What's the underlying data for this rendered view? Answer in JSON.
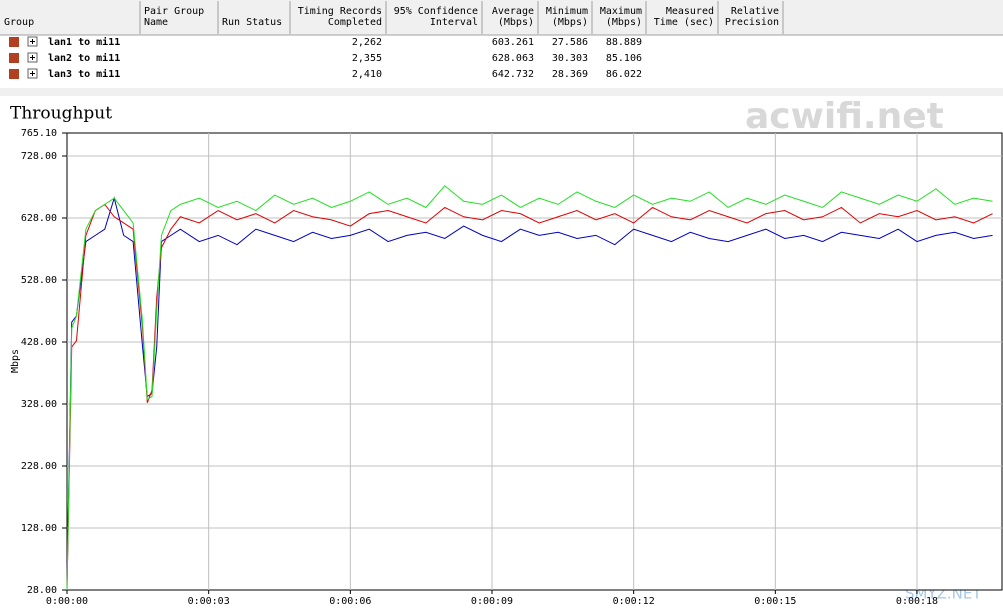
{
  "table": {
    "headers": [
      [
        "Group"
      ],
      [
        "Pair Group",
        "Name"
      ],
      [
        "Run Status"
      ],
      [
        "Timing Records",
        "Completed"
      ],
      [
        "95% Confidence",
        "Interval"
      ],
      [
        "Average",
        "(Mbps)"
      ],
      [
        "Minimum",
        "(Mbps)"
      ],
      [
        "Maximum",
        "(Mbps)"
      ],
      [
        "Measured",
        "Time (sec)"
      ],
      [
        "Relative",
        "Precision"
      ]
    ],
    "rows": [
      {
        "group": "lan1 to mi11",
        "records": "2,262",
        "average": "603.261",
        "minimum": "27.586",
        "maximum": "88.889"
      },
      {
        "group": "lan2 to mi11",
        "records": "2,355",
        "average": "628.063",
        "minimum": "30.303",
        "maximum": "85.106"
      },
      {
        "group": "lan3 to mi11",
        "records": "2,410",
        "average": "642.732",
        "minimum": "28.369",
        "maximum": "86.022"
      }
    ]
  },
  "watermarks": [
    "acwifi.net",
    "SMYZ.NET"
  ],
  "chart_data": {
    "type": "line",
    "title": "Throughput",
    "y_label": "Mbps",
    "grid": true,
    "x": [
      0,
      0.1,
      0.2,
      0.4,
      0.6,
      0.8,
      1.0,
      1.2,
      1.4,
      1.6,
      1.7,
      1.8,
      1.9,
      2.0,
      2.2,
      2.4,
      2.8,
      3.2,
      3.6,
      4.0,
      4.4,
      4.8,
      5.2,
      5.6,
      6.0,
      6.4,
      6.8,
      7.2,
      7.6,
      8.0,
      8.4,
      8.8,
      9.2,
      9.6,
      10.0,
      10.4,
      10.8,
      11.2,
      11.6,
      12.0,
      12.4,
      12.8,
      13.2,
      13.6,
      14.0,
      14.4,
      14.8,
      15.2,
      15.6,
      16.0,
      16.4,
      16.8,
      17.2,
      17.6,
      18.0,
      18.4,
      18.8,
      19.2,
      19.6
    ],
    "xlim": [
      0,
      19.8
    ],
    "xticks": [
      {
        "value": 0,
        "label": "0:00:00"
      },
      {
        "value": 3,
        "label": "0:00:03"
      },
      {
        "value": 6,
        "label": "0:00:06"
      },
      {
        "value": 9,
        "label": "0:00:09"
      },
      {
        "value": 12,
        "label": "0:00:12"
      },
      {
        "value": 15,
        "label": "0:00:15"
      },
      {
        "value": 18,
        "label": "0:00:18"
      }
    ],
    "ylim": [
      28,
      765.1
    ],
    "yticks": [
      {
        "value": 28,
        "label": "28.00"
      },
      {
        "value": 128,
        "label": "128.00"
      },
      {
        "value": 228,
        "label": "228.00"
      },
      {
        "value": 328,
        "label": "328.00"
      },
      {
        "value": 428,
        "label": "428.00"
      },
      {
        "value": 528,
        "label": "528.00"
      },
      {
        "value": 628,
        "label": "628.00"
      },
      {
        "value": 728,
        "label": "728.00"
      },
      {
        "value": 765.1,
        "label": "765.10"
      }
    ],
    "series": [
      {
        "name": "lan1 to mi11",
        "color": "#0000c0",
        "values": [
          40,
          460,
          470,
          590,
          600,
          610,
          660,
          600,
          590,
          420,
          340,
          345,
          420,
          590,
          600,
          610,
          590,
          600,
          585,
          610,
          600,
          590,
          605,
          595,
          600,
          610,
          590,
          600,
          605,
          595,
          615,
          600,
          590,
          610,
          600,
          605,
          595,
          600,
          585,
          610,
          600,
          590,
          605,
          595,
          590,
          600,
          610,
          595,
          600,
          590,
          605,
          600,
          595,
          610,
          590,
          600,
          605,
          595,
          600
        ]
      },
      {
        "name": "lan2 to mi11",
        "color": "#e00000",
        "values": [
          30,
          420,
          430,
          600,
          640,
          650,
          630,
          620,
          610,
          450,
          330,
          350,
          500,
          580,
          610,
          630,
          620,
          640,
          625,
          635,
          620,
          640,
          630,
          625,
          615,
          635,
          640,
          630,
          620,
          645,
          630,
          625,
          640,
          635,
          620,
          630,
          640,
          625,
          635,
          620,
          645,
          630,
          625,
          640,
          630,
          620,
          635,
          640,
          625,
          630,
          645,
          620,
          635,
          630,
          640,
          625,
          630,
          620,
          635
        ]
      },
      {
        "name": "lan3 to mi11",
        "color": "#20e020",
        "values": [
          28,
          450,
          470,
          610,
          640,
          650,
          660,
          640,
          620,
          460,
          335,
          340,
          480,
          600,
          640,
          650,
          660,
          645,
          655,
          640,
          665,
          650,
          660,
          645,
          655,
          670,
          650,
          660,
          645,
          680,
          655,
          650,
          665,
          645,
          660,
          650,
          670,
          655,
          645,
          665,
          650,
          660,
          655,
          670,
          645,
          660,
          650,
          665,
          655,
          645,
          670,
          660,
          650,
          665,
          655,
          675,
          650,
          660,
          655
        ]
      }
    ]
  }
}
